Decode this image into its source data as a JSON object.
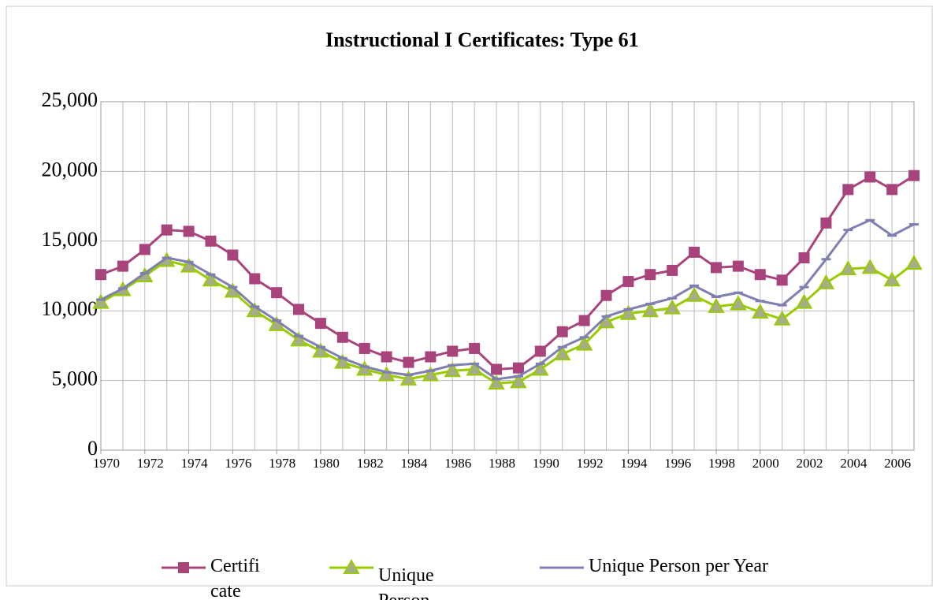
{
  "chart_data": {
    "type": "line",
    "title": "Instructional I Certificates: Type 61",
    "x": [
      1970,
      1971,
      1972,
      1973,
      1974,
      1975,
      1976,
      1977,
      1978,
      1979,
      1980,
      1981,
      1982,
      1983,
      1984,
      1985,
      1986,
      1987,
      1988,
      1989,
      1990,
      1991,
      1992,
      1993,
      1994,
      1995,
      1996,
      1997,
      1998,
      1999,
      2000,
      2001,
      2002,
      2003,
      2004,
      2005,
      2006,
      2007
    ],
    "xlim": [
      1970,
      2007
    ],
    "xticks": [
      1970,
      1972,
      1974,
      1976,
      1978,
      1980,
      1982,
      1984,
      1986,
      1988,
      1990,
      1992,
      1994,
      1996,
      1998,
      2000,
      2002,
      2004,
      2006
    ],
    "ylim": [
      0,
      25000
    ],
    "yticks": [
      0,
      {
        "value": 5000,
        "label": "5,000"
      },
      {
        "value": 10000,
        "label": "10,000"
      },
      {
        "value": 15000,
        "label": "15,000"
      },
      {
        "value": 20000,
        "label": "20,000"
      },
      {
        "value": 25000,
        "label": "25,000"
      }
    ],
    "grid": true,
    "legend": "bottom",
    "series": [
      {
        "name": "Certificate",
        "color": "#a8437c",
        "marker": "square",
        "values": [
          12600,
          13200,
          14400,
          15800,
          15700,
          15000,
          14000,
          12300,
          11300,
          10100,
          9100,
          8100,
          7300,
          6700,
          6300,
          6700,
          7100,
          7300,
          5800,
          5900,
          7100,
          8500,
          9300,
          11100,
          12100,
          12600,
          12900,
          14200,
          13100,
          13200,
          12600,
          12200,
          13800,
          16300,
          18700,
          19600,
          18700,
          19700
        ]
      },
      {
        "name": "Unique Person",
        "color": "#99cc00",
        "marker": "triangle",
        "values": [
          10600,
          11500,
          12500,
          13600,
          13200,
          12200,
          11400,
          10000,
          9000,
          7900,
          7100,
          6300,
          5800,
          5400,
          5100,
          5400,
          5700,
          5800,
          4800,
          4900,
          5800,
          6900,
          7600,
          9200,
          9800,
          10000,
          10200,
          11100,
          10300,
          10500,
          9900,
          9400,
          10600,
          12000,
          13000,
          13100,
          12200,
          13400
        ]
      },
      {
        "name": "Unique Person per Year",
        "color": "#7f7fb2",
        "marker": "dash",
        "values": [
          10800,
          11600,
          12700,
          13800,
          13500,
          12600,
          11700,
          10300,
          9300,
          8200,
          7400,
          6600,
          6000,
          5600,
          5400,
          5700,
          6100,
          6200,
          5100,
          5300,
          6200,
          7400,
          8100,
          9600,
          10100,
          10500,
          10900,
          11800,
          11000,
          11300,
          10700,
          10400,
          11700,
          13700,
          15800,
          16500,
          15400,
          16200
        ]
      }
    ]
  }
}
